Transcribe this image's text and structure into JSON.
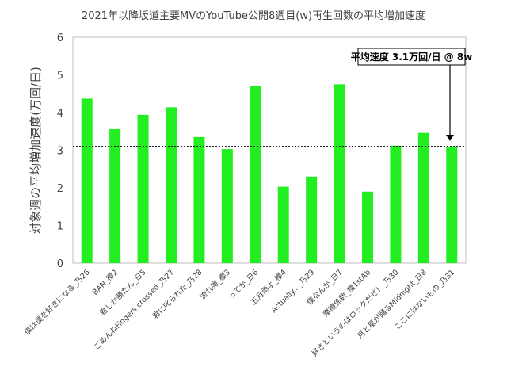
{
  "chart_data": {
    "type": "bar",
    "title": "2021年以降坂道主要MVのYouTube公開8週目(w)再生回数の平均増加速度",
    "ylabel": "対象週の平均増加速度(万回/日)",
    "xlabel": "",
    "ylim": [
      0,
      6
    ],
    "yticks": [
      0,
      1,
      2,
      3,
      4,
      5,
      6
    ],
    "grid": false,
    "bar_color": "#22ee22",
    "categories": [
      "僕は僕を好きになる_乃26",
      "BAN_櫻2",
      "君しか勝たん_日5",
      "ごめんねFingers crossed_乃27",
      "君に叱られた_乃28",
      "流れ弾_櫻3",
      "ってか_日6",
      "五月雨よ_櫻4",
      "Actually..._乃29",
      "僕なんか_日7",
      "摩擦係数_櫻1stAb",
      "好きというのはロックだぜ！_乃30",
      "月と星が踊るMidnight_日8",
      "ここにはないもの_乃31"
    ],
    "values": [
      4.37,
      3.56,
      3.94,
      4.14,
      3.35,
      3.03,
      4.7,
      2.03,
      2.3,
      4.75,
      1.9,
      3.12,
      3.46,
      3.08
    ],
    "reference_line": {
      "value": 3.1,
      "style": "dotted"
    },
    "annotation": {
      "text": "平均速度 3.1万回/日 @ 8w",
      "points_to": "ここにはないもの_乃31"
    }
  }
}
